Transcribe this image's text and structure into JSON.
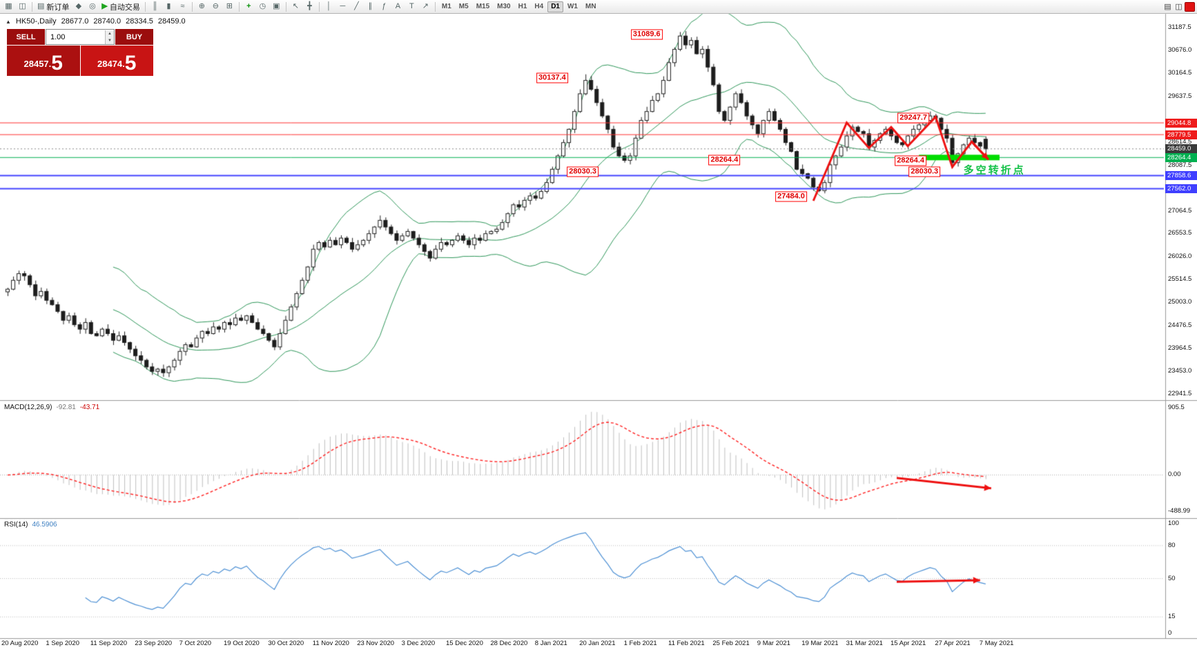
{
  "toolbar": {
    "buttons": [
      {
        "id": "new-chart",
        "glyph": "▦"
      },
      {
        "id": "chart-profiles",
        "glyph": "◫"
      },
      {
        "id": "sep"
      },
      {
        "id": "new-order",
        "glyph": "▤",
        "label": "新订单"
      },
      {
        "id": "market-watch",
        "glyph": "◆"
      },
      {
        "id": "strategy-tester",
        "glyph": "◎"
      },
      {
        "id": "auto-trading",
        "glyph": "▶",
        "label": "自动交易",
        "accent": "#1fa51f"
      },
      {
        "id": "sep"
      },
      {
        "id": "bar-chart-mode",
        "glyph": "║"
      },
      {
        "id": "candlestick-mode",
        "glyph": "▮"
      },
      {
        "id": "line-chart-mode",
        "glyph": "≈"
      },
      {
        "id": "sep"
      },
      {
        "id": "zoom-in",
        "glyph": "⊕"
      },
      {
        "id": "zoom-out",
        "glyph": "⊖"
      },
      {
        "id": "tile-windows",
        "glyph": "⊞"
      },
      {
        "id": "sep"
      },
      {
        "id": "add-indicator",
        "glyph": "+",
        "accent": "#0a930a"
      },
      {
        "id": "periods",
        "glyph": "◷"
      },
      {
        "id": "templates",
        "glyph": "▣"
      },
      {
        "id": "sep"
      },
      {
        "id": "cursor",
        "glyph": "↖"
      },
      {
        "id": "crosshair",
        "glyph": "╋"
      },
      {
        "id": "sep"
      },
      {
        "id": "vertical-line",
        "glyph": "│"
      },
      {
        "id": "horizontal-line",
        "glyph": "─"
      },
      {
        "id": "trendline",
        "glyph": "╱"
      },
      {
        "id": "equidistant-channel",
        "glyph": "∥"
      },
      {
        "id": "fibonacci",
        "glyph": "ƒ"
      },
      {
        "id": "text",
        "glyph": "A"
      },
      {
        "id": "text-label",
        "glyph": "T"
      },
      {
        "id": "arrows",
        "glyph": "↗"
      },
      {
        "id": "sep"
      }
    ],
    "timeframes": [
      "M1",
      "M5",
      "M15",
      "M30",
      "H1",
      "H4",
      "D1",
      "W1",
      "MN"
    ],
    "active_timeframe": "D1",
    "right_icons": [
      {
        "id": "data-window",
        "glyph": "▤"
      },
      {
        "id": "layout",
        "glyph": "◫"
      },
      {
        "id": "alert-badge",
        "glyph": "",
        "color": "#e01212"
      }
    ]
  },
  "info_bar": {
    "collapse_glyph": "▲",
    "symbol_period": "HK50-,Daily",
    "open": "28677.0",
    "high": "28740.0",
    "low": "28334.5",
    "close": "28459.0"
  },
  "trade_panel": {
    "sell_label": "SELL",
    "buy_label": "BUY",
    "volume": "1.00",
    "spin_up": "▲",
    "spin_down": "▼",
    "bid_main": "28457.",
    "bid_big": "5",
    "ask_main": "28474.",
    "ask_big": "5"
  },
  "chart_data": {
    "type": "candlestick",
    "symbol": "HK50-",
    "period": "Daily",
    "closes": [
      25300,
      25500,
      25650,
      25600,
      25400,
      25150,
      25250,
      25050,
      24950,
      24800,
      24600,
      24700,
      24500,
      24400,
      24550,
      24300,
      24250,
      24400,
      24300,
      24150,
      24250,
      24100,
      23950,
      23800,
      23700,
      23550,
      23450,
      23500,
      23420,
      23550,
      23700,
      23900,
      24050,
      24000,
      24200,
      24350,
      24300,
      24450,
      24400,
      24550,
      24500,
      24650,
      24600,
      24700,
      24550,
      24400,
      24300,
      24150,
      24000,
      24300,
      24600,
      24900,
      25200,
      25500,
      25800,
      26200,
      26350,
      26250,
      26400,
      26300,
      26450,
      26350,
      26200,
      26300,
      26400,
      26550,
      26700,
      26850,
      26700,
      26550,
      26400,
      26500,
      26600,
      26450,
      26300,
      26150,
      26000,
      26200,
      26350,
      26300,
      26400,
      26500,
      26400,
      26300,
      26450,
      26400,
      26550,
      26600,
      26650,
      26800,
      27000,
      27200,
      27150,
      27300,
      27400,
      27350,
      27500,
      27700,
      28000,
      28300,
      28600,
      28900,
      29300,
      29700,
      30000,
      29800,
      29500,
      29200,
      28900,
      28500,
      28300,
      28200,
      28300,
      28700,
      29100,
      29300,
      29550,
      29700,
      30000,
      30400,
      30700,
      31000,
      30800,
      30900,
      30600,
      30700,
      30300,
      29900,
      29300,
      29100,
      29400,
      29700,
      29500,
      29200,
      29000,
      28800,
      29100,
      29300,
      29100,
      28900,
      28600,
      28400,
      28000,
      27900,
      27800,
      27600,
      27520,
      27700,
      28100,
      28300,
      28500,
      28750,
      28950,
      28850,
      28800,
      28500,
      28650,
      28800,
      28900,
      28750,
      28600,
      28550,
      28750,
      28900,
      29000,
      29100,
      29200,
      29150,
      28900,
      28700,
      28150,
      28350,
      28550,
      28700,
      28600,
      28520,
      28459
    ],
    "ohlc_overrides": {
      "104": {
        "high": 30137.4
      },
      "121": {
        "high": 31089.6
      },
      "146": {
        "low": 27484.0
      },
      "167": {
        "high": 29247.7
      },
      "170": {
        "low": 28030.3
      },
      "176": {
        "open": 28677.0,
        "high": 28740.0,
        "low": 28334.5,
        "close": 28459.0
      }
    },
    "bollinger": {
      "period": 20,
      "deviation": 2,
      "color": "#2c9658"
    },
    "candle_colors": {
      "up": "#ffffff",
      "down": "#1d1d1d",
      "outline": "#1d1d1d"
    },
    "price_axis": {
      "min": 22910,
      "max": 31500,
      "ticks": [
        "31187.5",
        "30676.0",
        "30164.5",
        "29637.5",
        "28614.5",
        "28087.5",
        "27064.5",
        "26553.5",
        "26026.0",
        "25514.5",
        "25003.0",
        "24476.5",
        "23964.5",
        "23453.0",
        "22941.5"
      ]
    },
    "price_tags": [
      {
        "value": "29044.8",
        "price": 29044.8,
        "color": "#ee1c1c"
      },
      {
        "value": "28779.5",
        "price": 28779.5,
        "color": "#ee1c1c"
      },
      {
        "value": "28459.0",
        "price": 28459.0,
        "color": "#3a3a3a"
      },
      {
        "value": "28264.4",
        "price": 28264.4,
        "color": "#00b050"
      },
      {
        "value": "27858.6",
        "price": 27858.6,
        "color": "#3f3fff"
      },
      {
        "value": "27562.0",
        "price": 27562.0,
        "color": "#3f3fff"
      }
    ],
    "h_lines": [
      {
        "price": 29044.8,
        "color": "#ff3030",
        "width": 1
      },
      {
        "price": 28779.5,
        "color": "#ff3030",
        "width": 1
      },
      {
        "price": 28264.4,
        "color": "#00b050",
        "width": 1
      },
      {
        "price": 27858.6,
        "color": "#4444ff",
        "width": 2
      },
      {
        "price": 27562.0,
        "color": "#4444ff",
        "width": 2
      }
    ],
    "last_price_line": {
      "price": 28459.0,
      "color": "#888888"
    },
    "highlight_bar": {
      "idx_from": 164,
      "idx_to": 178.5,
      "price": 28264.4,
      "color": "#00dd00",
      "thickness": 8
    },
    "annotations": [
      {
        "text": "31089.6",
        "idx": 115,
        "price": 31030
      },
      {
        "text": "30137.4",
        "idx": 98,
        "price": 30060
      },
      {
        "text": "29247.7",
        "idx": 163,
        "price": 29160
      },
      {
        "text": "28264.4",
        "idx": 129,
        "price": 28200
      },
      {
        "text": "28030.3",
        "idx": 103.5,
        "price": 27950
      },
      {
        "text": "28264.4",
        "idx": 162.5,
        "price": 28190
      },
      {
        "text": "28030.3",
        "idx": 165,
        "price": 27945
      },
      {
        "text": "27484.0",
        "idx": 141,
        "price": 27390
      }
    ],
    "note_text": {
      "text": "多空转折点",
      "idx": 172,
      "price": 27990,
      "color": "#17c24a"
    },
    "zigzag": {
      "color": "#ee1111",
      "points": [
        [
          145,
          27290
        ],
        [
          151,
          29050
        ],
        [
          155,
          28480
        ],
        [
          159,
          28950
        ],
        [
          162,
          28520
        ],
        [
          167,
          29180
        ],
        [
          170,
          28050
        ],
        [
          173.5,
          28620
        ],
        [
          176.5,
          28220
        ]
      ]
    },
    "macd": {
      "name": "MACD(12,26,9)",
      "value_main": "-92.81",
      "value_signal": "-43.71",
      "fast": 12,
      "slow": 26,
      "signal": 9,
      "ticks": [
        {
          "v": 905.5,
          "label": "905.5"
        },
        {
          "v": 0,
          "label": "0.00"
        },
        {
          "v": -488.99,
          "label": "-488.99"
        }
      ],
      "hist_color": "#bfbfbf",
      "signal_color": "#ff2a2a",
      "arrow": [
        [
          160,
          -40
        ],
        [
          177,
          -180
        ]
      ]
    },
    "rsi": {
      "name": "RSI(14)",
      "value": "46.5906",
      "period": 14,
      "ticks": [
        {
          "v": 100,
          "label": "100"
        },
        {
          "v": 80,
          "label": "80"
        },
        {
          "v": 50,
          "label": "50"
        },
        {
          "v": 15,
          "label": "15"
        },
        {
          "v": 0,
          "label": "0"
        }
      ],
      "levels": [
        80,
        50,
        15
      ],
      "color": "#4b8fd4",
      "arrow": [
        [
          160,
          47
        ],
        [
          175,
          48.5
        ]
      ]
    },
    "dates": [
      "20 Aug 2020",
      "1 Sep 2020",
      "11 Sep 2020",
      "23 Sep 2020",
      "7 Oct 2020",
      "19 Oct 2020",
      "30 Oct 2020",
      "11 Nov 2020",
      "23 Nov 2020",
      "3 Dec 2020",
      "15 Dec 2020",
      "28 Dec 2020",
      "8 Jan 2021",
      "20 Jan 2021",
      "1 Feb 2021",
      "11 Feb 2021",
      "25 Feb 2021",
      "9 Mar 2021",
      "19 Mar 2021",
      "31 Mar 2021",
      "15 Apr 2021",
      "27 Apr 2021",
      "7 May 2021"
    ]
  }
}
